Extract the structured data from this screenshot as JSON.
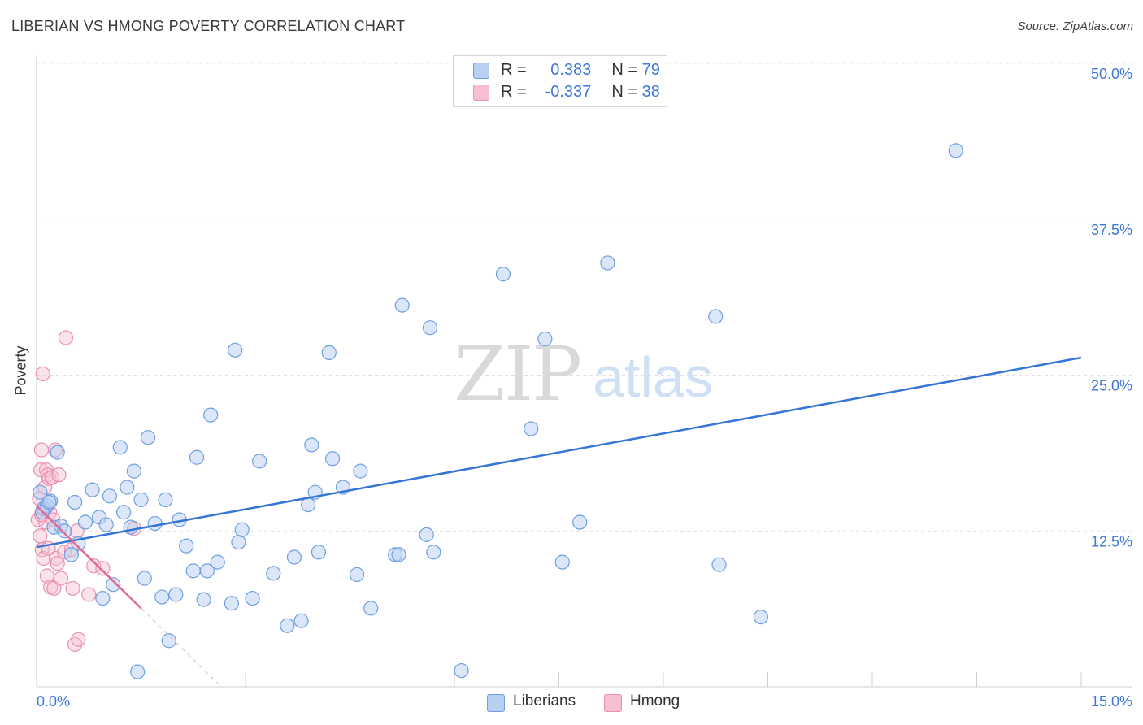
{
  "header": {
    "title": "LIBERIAN VS HMONG POVERTY CORRELATION CHART",
    "source": "Source: ZipAtlas.com"
  },
  "legend_top": {
    "rows": [
      {
        "r_label": "R =",
        "r_value": "0.383",
        "n_label": "N =",
        "n_value": "79"
      },
      {
        "r_label": "R =",
        "r_value": "-0.337",
        "n_label": "N =",
        "n_value": "38"
      }
    ]
  },
  "legend_bottom": {
    "liberians": "Liberians",
    "hmong": "Hmong"
  },
  "watermark": {
    "zip": "ZIP",
    "atlas": "atlas"
  },
  "colors": {
    "liberian_fill": "#b8d0f2",
    "liberian_stroke": "#6f9fe0",
    "liberian_line": "#3575d6",
    "hmong_fill": "#f6c0d2",
    "hmong_stroke": "#ea8fb0",
    "hmong_line": "#e06a94",
    "axis_label": "#3d78d8",
    "grid": "#e0e0e0"
  },
  "chart_data": {
    "type": "scatter",
    "title": "LIBERIAN VS HMONG POVERTY CORRELATION CHART",
    "xlabel": "",
    "ylabel": "Poverty",
    "xlim": [
      0,
      15
    ],
    "ylim": [
      0,
      50
    ],
    "x_tick_labels": [
      "0.0%",
      "15.0%"
    ],
    "y_ticks": [
      12.5,
      25.0,
      37.5,
      50.0
    ],
    "y_tick_labels": [
      "12.5%",
      "25.0%",
      "37.5%",
      "50.0%"
    ],
    "grid": true,
    "series": [
      {
        "name": "Liberians",
        "r": 0.383,
        "n": 79,
        "trend": {
          "x": [
            0.0,
            15.0
          ],
          "y": [
            11.2,
            26.4
          ]
        },
        "points": [
          [
            0.05,
            15.6
          ],
          [
            0.1,
            14.3
          ],
          [
            0.15,
            14.5
          ],
          [
            0.2,
            14.9
          ],
          [
            0.25,
            12.8
          ],
          [
            0.3,
            18.8
          ],
          [
            0.35,
            12.9
          ],
          [
            0.4,
            12.5
          ],
          [
            0.5,
            10.6
          ],
          [
            0.55,
            14.8
          ],
          [
            0.6,
            11.5
          ],
          [
            0.7,
            13.2
          ],
          [
            0.8,
            15.8
          ],
          [
            0.9,
            13.6
          ],
          [
            0.95,
            7.1
          ],
          [
            1.0,
            13.0
          ],
          [
            1.05,
            15.3
          ],
          [
            1.1,
            8.2
          ],
          [
            1.2,
            19.2
          ],
          [
            1.25,
            14.0
          ],
          [
            1.3,
            16.0
          ],
          [
            1.35,
            12.8
          ],
          [
            1.4,
            17.3
          ],
          [
            1.45,
            1.2
          ],
          [
            1.5,
            15.0
          ],
          [
            1.55,
            8.7
          ],
          [
            1.6,
            20.0
          ],
          [
            1.7,
            13.1
          ],
          [
            1.8,
            7.2
          ],
          [
            1.85,
            15.0
          ],
          [
            1.9,
            3.7
          ],
          [
            2.0,
            7.4
          ],
          [
            2.05,
            13.4
          ],
          [
            2.15,
            11.3
          ],
          [
            2.25,
            9.3
          ],
          [
            2.3,
            18.4
          ],
          [
            2.4,
            7.0
          ],
          [
            2.45,
            9.3
          ],
          [
            2.5,
            21.8
          ],
          [
            2.6,
            10.0
          ],
          [
            2.8,
            6.7
          ],
          [
            2.85,
            27.0
          ],
          [
            2.9,
            11.6
          ],
          [
            2.95,
            12.6
          ],
          [
            3.1,
            7.1
          ],
          [
            3.2,
            18.1
          ],
          [
            3.4,
            9.1
          ],
          [
            3.6,
            4.9
          ],
          [
            3.7,
            10.4
          ],
          [
            3.8,
            5.3
          ],
          [
            3.9,
            14.6
          ],
          [
            3.95,
            19.4
          ],
          [
            4.0,
            15.6
          ],
          [
            4.05,
            10.8
          ],
          [
            4.2,
            26.8
          ],
          [
            4.25,
            18.3
          ],
          [
            4.4,
            16.0
          ],
          [
            4.6,
            9.0
          ],
          [
            4.65,
            17.3
          ],
          [
            4.8,
            6.3
          ],
          [
            5.15,
            10.6
          ],
          [
            5.2,
            10.6
          ],
          [
            5.25,
            30.6
          ],
          [
            5.6,
            12.2
          ],
          [
            5.65,
            28.8
          ],
          [
            5.7,
            10.8
          ],
          [
            6.1,
            1.3
          ],
          [
            6.7,
            33.1
          ],
          [
            7.1,
            20.7
          ],
          [
            7.3,
            27.9
          ],
          [
            7.55,
            10.0
          ],
          [
            7.8,
            13.2
          ],
          [
            8.2,
            34.0
          ],
          [
            9.75,
            29.7
          ],
          [
            9.8,
            9.8
          ],
          [
            10.4,
            5.6
          ],
          [
            13.2,
            43.0
          ],
          [
            0.08,
            14.0
          ],
          [
            0.18,
            14.8
          ]
        ]
      },
      {
        "name": "Hmong",
        "r": -0.337,
        "n": 38,
        "trend": {
          "x": [
            0.0,
            1.5
          ],
          "y": [
            14.5,
            6.3
          ]
        },
        "trend_extension": {
          "x": [
            1.5,
            3.0
          ],
          "y": [
            6.3,
            -1.9
          ]
        },
        "points": [
          [
            0.02,
            13.4
          ],
          [
            0.04,
            15.1
          ],
          [
            0.05,
            12.1
          ],
          [
            0.06,
            17.4
          ],
          [
            0.07,
            19.0
          ],
          [
            0.08,
            11.0
          ],
          [
            0.09,
            25.1
          ],
          [
            0.1,
            10.3
          ],
          [
            0.11,
            14.2
          ],
          [
            0.12,
            16.0
          ],
          [
            0.13,
            13.2
          ],
          [
            0.14,
            17.4
          ],
          [
            0.15,
            8.9
          ],
          [
            0.16,
            17.0
          ],
          [
            0.17,
            11.1
          ],
          [
            0.18,
            16.7
          ],
          [
            0.19,
            14.0
          ],
          [
            0.2,
            8.0
          ],
          [
            0.22,
            16.8
          ],
          [
            0.24,
            13.4
          ],
          [
            0.25,
            7.9
          ],
          [
            0.27,
            19.0
          ],
          [
            0.28,
            10.3
          ],
          [
            0.3,
            9.9
          ],
          [
            0.32,
            17.0
          ],
          [
            0.35,
            8.7
          ],
          [
            0.4,
            10.8
          ],
          [
            0.42,
            28.0
          ],
          [
            0.5,
            11.0
          ],
          [
            0.52,
            7.9
          ],
          [
            0.55,
            3.4
          ],
          [
            0.58,
            12.5
          ],
          [
            0.6,
            3.8
          ],
          [
            0.75,
            7.4
          ],
          [
            0.82,
            9.7
          ],
          [
            0.95,
            9.5
          ],
          [
            1.4,
            12.7
          ],
          [
            0.07,
            13.8
          ]
        ]
      }
    ]
  }
}
